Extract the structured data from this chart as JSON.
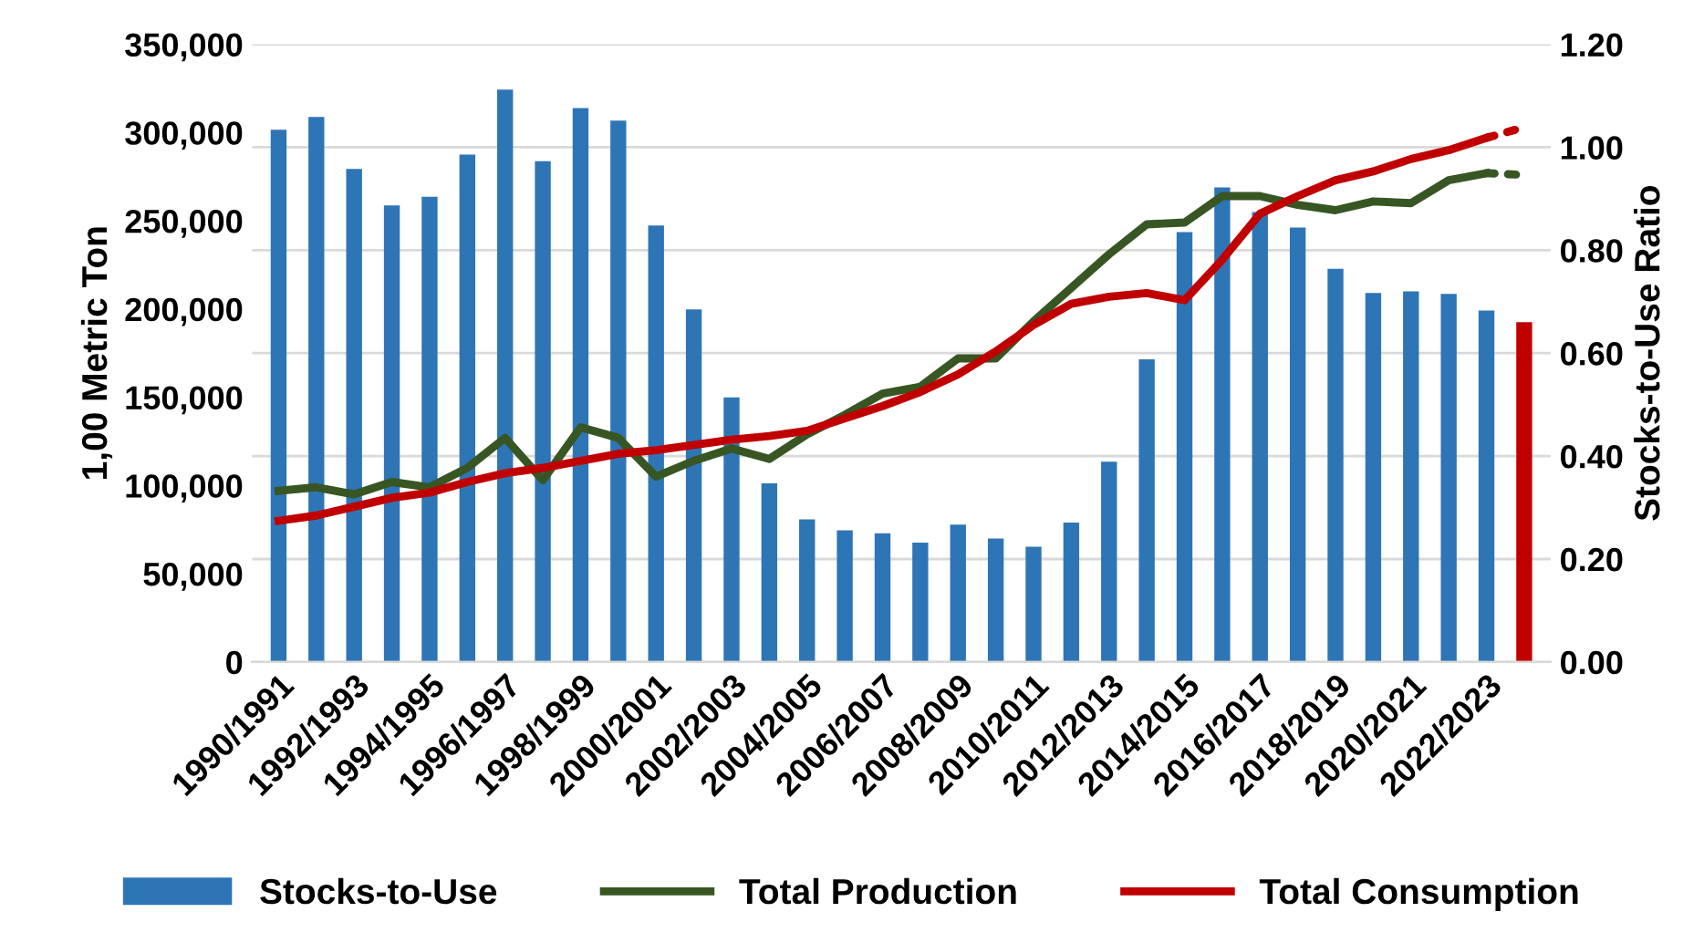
{
  "chart_data": {
    "type": "bar",
    "ylabel": "1,00 Metric Ton",
    "y2label": "Stocks-to-Use Ratio",
    "categories": [
      "1990/1991",
      null,
      "1992/1993",
      null,
      "1994/1995",
      null,
      "1996/1997",
      null,
      "1998/1999",
      null,
      "2000/2001",
      null,
      "2002/2003",
      null,
      "2004/2005",
      null,
      "2006/2007",
      null,
      "2008/2009",
      null,
      "2010/2011",
      null,
      "2012/2013",
      null,
      "2014/2015",
      null,
      "2016/2017",
      null,
      "2018/2019",
      null,
      "2020/2021",
      null,
      "2022/2023",
      null
    ],
    "series": [
      {
        "name": "Stocks-to-Use",
        "axis": "y2",
        "color": "#2e75b6",
        "colors": [
          "#2e75b6",
          "#2e75b6",
          "#2e75b6",
          "#2e75b6",
          "#2e75b6",
          "#2e75b6",
          "#2e75b6",
          "#2e75b6",
          "#2e75b6",
          "#2e75b6",
          "#2e75b6",
          "#2e75b6",
          "#2e75b6",
          "#2e75b6",
          "#2e75b6",
          "#2e75b6",
          "#2e75b6",
          "#2e75b6",
          "#2e75b6",
          "#2e75b6",
          "#2e75b6",
          "#2e75b6",
          "#2e75b6",
          "#2e75b6",
          "#2e75b6",
          "#2e75b6",
          "#2e75b6",
          "#2e75b6",
          "#2e75b6",
          "#2e75b6",
          "#2e75b6",
          "#2e75b6",
          "#2e75b6",
          "#c00000"
        ],
        "values": [
          1.034,
          1.059,
          0.958,
          0.887,
          0.904,
          0.986,
          1.112,
          0.973,
          1.076,
          1.052,
          0.848,
          0.685,
          0.514,
          0.347,
          0.277,
          0.256,
          0.25,
          0.232,
          0.267,
          0.24,
          0.224,
          0.271,
          0.389,
          0.588,
          0.835,
          0.922,
          0.874,
          0.844,
          0.764,
          0.717,
          0.72,
          0.715,
          0.683,
          0.66
        ]
      },
      {
        "name": "Total Production",
        "type": "line",
        "color": "#375623",
        "line_style": "solid",
        "values": [
          97000,
          99000,
          95000,
          102000,
          99000,
          110000,
          127000,
          103000,
          133000,
          127000,
          105000,
          114000,
          121000,
          115000,
          129000,
          140000,
          152000,
          156000,
          172000,
          172000,
          193000,
          212000,
          231000,
          248000,
          249000,
          264000,
          264000,
          259000,
          256000,
          261000,
          260000,
          273000,
          277000,
          null
        ]
      },
      {
        "name": "Total Consumption",
        "type": "line",
        "color": "#c00000",
        "line_style": "solid",
        "values": [
          80000,
          83000,
          88000,
          93000,
          96000,
          102000,
          107000,
          110000,
          114000,
          118000,
          120000,
          123000,
          126000,
          128000,
          131000,
          138000,
          145000,
          153000,
          163000,
          176000,
          191000,
          203000,
          207000,
          209000,
          205000,
          228000,
          254000,
          264000,
          273000,
          278000,
          285000,
          290000,
          297000,
          null
        ]
      },
      {
        "type": "line",
        "color": "#375623",
        "line_style": "dotted",
        "values": [
          null,
          null,
          null,
          null,
          null,
          null,
          null,
          null,
          null,
          null,
          null,
          null,
          null,
          null,
          null,
          null,
          null,
          null,
          null,
          null,
          null,
          null,
          null,
          null,
          null,
          null,
          null,
          null,
          null,
          null,
          null,
          null,
          277000,
          276000
        ]
      },
      {
        "type": "line",
        "color": "#c00000",
        "line_style": "dotted",
        "values": [
          null,
          null,
          null,
          null,
          null,
          null,
          null,
          null,
          null,
          null,
          null,
          null,
          null,
          null,
          null,
          null,
          null,
          null,
          null,
          null,
          null,
          null,
          null,
          null,
          null,
          null,
          null,
          null,
          null,
          null,
          null,
          null,
          297000,
          303000
        ]
      }
    ],
    "ylim": [
      0,
      350000
    ],
    "yticks": [
      0,
      {
        "value": 50000,
        "label": "50,000"
      },
      {
        "value": 100000,
        "label": "100,000"
      },
      {
        "value": 150000,
        "label": "150,000"
      },
      {
        "value": 200000,
        "label": "200,000"
      },
      {
        "value": 250000,
        "label": "250,000"
      },
      {
        "value": 300000,
        "label": "300,000"
      },
      {
        "value": 350000,
        "label": "350,000"
      }
    ],
    "y2lim": [
      0,
      1.2
    ],
    "y2ticks": [
      {
        "value": 0,
        "label": "0.00"
      },
      {
        "value": 0.2,
        "label": "0.20"
      },
      {
        "value": 0.4,
        "label": "0.40"
      },
      {
        "value": 0.6,
        "label": "0.60"
      },
      {
        "value": 0.8,
        "label": "0.80"
      },
      {
        "value": 1.0,
        "label": "1.00"
      },
      {
        "value": 1.2,
        "label": "1.20"
      }
    ],
    "grid": "y",
    "legend": "bottom"
  }
}
